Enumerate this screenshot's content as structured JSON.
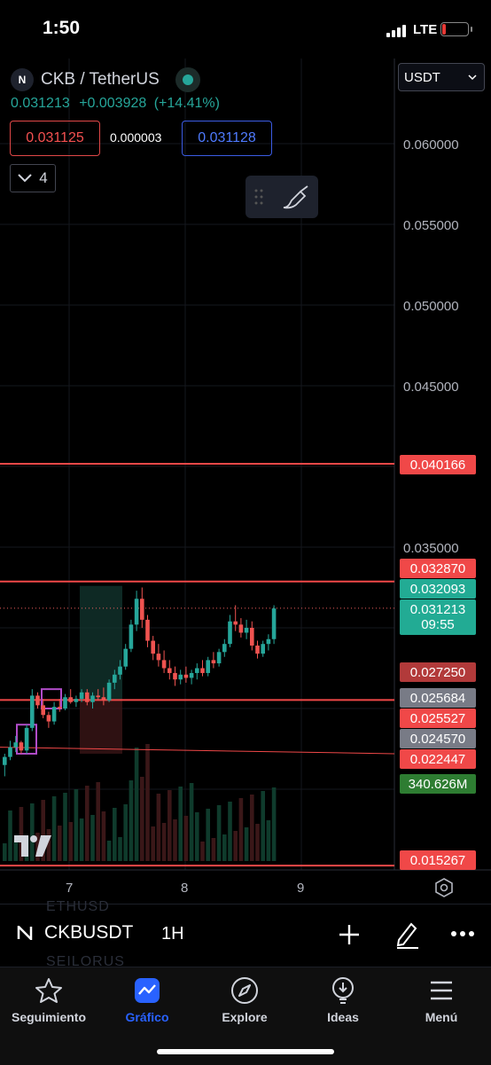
{
  "status_bar": {
    "time": "1:50",
    "network": "LTE"
  },
  "header": {
    "symbol_title": "CKB / TetherUS",
    "last_price": "0.031213",
    "change": "+0.003928",
    "change_pct": "(+14.41%)",
    "bid": "0.031125",
    "spread": "0.000003",
    "ask": "0.031128",
    "indicators_count": "4",
    "currency": "USDT"
  },
  "price_axis": {
    "labels": [
      "0.060000",
      "0.055000",
      "0.050000",
      "0.045000",
      "0.035000"
    ],
    "badges": [
      {
        "value": "0.040166",
        "color": "#f04848"
      },
      {
        "value": "0.032870",
        "color": "#f04848"
      },
      {
        "value": "0.032093",
        "color": "#22ab94"
      },
      {
        "value": "0.031213",
        "color": "#22ab94"
      },
      {
        "value": "09:55",
        "color": "#22ab94"
      },
      {
        "value": "0.027250",
        "color": "#f23645"
      },
      {
        "value": "0.025684",
        "color": "#787b86"
      },
      {
        "value": "0.025527",
        "color": "#f23645"
      },
      {
        "value": "0.024570",
        "color": "#787b86"
      },
      {
        "value": "0.022447",
        "color": "#f23645"
      },
      {
        "value": "340.626M",
        "color": "#2e7d32"
      },
      {
        "value": "0.015267",
        "color": "#f23645"
      }
    ]
  },
  "time_axis": {
    "labels": [
      "7",
      "8",
      "9"
    ]
  },
  "chart_data": {
    "type": "candlestick",
    "symbol": "CKBUSDT",
    "interval": "1H",
    "price_axis_ticks": [
      0.06,
      0.055,
      0.05,
      0.045,
      0.035
    ],
    "time_axis_ticks": [
      "7",
      "8",
      "9"
    ],
    "ylim": [
      0.015,
      0.0625
    ],
    "horizontal_levels": [
      0.040166,
      0.03287,
      0.025527,
      0.015267
    ],
    "trendline": {
      "from": 0.0226,
      "to": 0.0222
    },
    "last_price": 0.031213,
    "volume_last": "340.626M",
    "candles": [
      {
        "o": 0.0215,
        "h": 0.0222,
        "l": 0.0208,
        "c": 0.022
      },
      {
        "o": 0.022,
        "h": 0.023,
        "l": 0.0218,
        "c": 0.0226
      },
      {
        "o": 0.0226,
        "h": 0.0233,
        "l": 0.0223,
        "c": 0.0229
      },
      {
        "o": 0.0229,
        "h": 0.023,
        "l": 0.0222,
        "c": 0.0224
      },
      {
        "o": 0.0224,
        "h": 0.024,
        "l": 0.0222,
        "c": 0.0238
      },
      {
        "o": 0.0238,
        "h": 0.0262,
        "l": 0.0236,
        "c": 0.0258
      },
      {
        "o": 0.0258,
        "h": 0.026,
        "l": 0.025,
        "c": 0.0252
      },
      {
        "o": 0.0252,
        "h": 0.0256,
        "l": 0.0244,
        "c": 0.0246
      },
      {
        "o": 0.0246,
        "h": 0.0248,
        "l": 0.0238,
        "c": 0.0242
      },
      {
        "o": 0.0242,
        "h": 0.0254,
        "l": 0.024,
        "c": 0.0251
      },
      {
        "o": 0.0251,
        "h": 0.0256,
        "l": 0.0248,
        "c": 0.025
      },
      {
        "o": 0.025,
        "h": 0.0259,
        "l": 0.0249,
        "c": 0.0257
      },
      {
        "o": 0.0257,
        "h": 0.0262,
        "l": 0.0253,
        "c": 0.0254
      },
      {
        "o": 0.0254,
        "h": 0.0258,
        "l": 0.0251,
        "c": 0.0256
      },
      {
        "o": 0.0256,
        "h": 0.0262,
        "l": 0.0254,
        "c": 0.026
      },
      {
        "o": 0.026,
        "h": 0.0262,
        "l": 0.0252,
        "c": 0.0254
      },
      {
        "o": 0.0254,
        "h": 0.026,
        "l": 0.025,
        "c": 0.0258
      },
      {
        "o": 0.0258,
        "h": 0.0262,
        "l": 0.0255,
        "c": 0.0257
      },
      {
        "o": 0.0257,
        "h": 0.0263,
        "l": 0.0252,
        "c": 0.0255
      },
      {
        "o": 0.0255,
        "h": 0.0268,
        "l": 0.0254,
        "c": 0.0266
      },
      {
        "o": 0.0266,
        "h": 0.0274,
        "l": 0.0262,
        "c": 0.0271
      },
      {
        "o": 0.0271,
        "h": 0.028,
        "l": 0.0268,
        "c": 0.0276
      },
      {
        "o": 0.0276,
        "h": 0.029,
        "l": 0.0274,
        "c": 0.0287
      },
      {
        "o": 0.0287,
        "h": 0.0305,
        "l": 0.0285,
        "c": 0.0302
      },
      {
        "o": 0.0302,
        "h": 0.0323,
        "l": 0.0298,
        "c": 0.0318
      },
      {
        "o": 0.0318,
        "h": 0.0325,
        "l": 0.03,
        "c": 0.0305
      },
      {
        "o": 0.0305,
        "h": 0.0308,
        "l": 0.0288,
        "c": 0.0292
      },
      {
        "o": 0.0292,
        "h": 0.0295,
        "l": 0.028,
        "c": 0.0284
      },
      {
        "o": 0.0284,
        "h": 0.029,
        "l": 0.0276,
        "c": 0.028
      },
      {
        "o": 0.028,
        "h": 0.0286,
        "l": 0.0272,
        "c": 0.0275
      },
      {
        "o": 0.0275,
        "h": 0.028,
        "l": 0.0268,
        "c": 0.0272
      },
      {
        "o": 0.0272,
        "h": 0.0276,
        "l": 0.0264,
        "c": 0.0268
      },
      {
        "o": 0.0268,
        "h": 0.0274,
        "l": 0.0265,
        "c": 0.0271
      },
      {
        "o": 0.0271,
        "h": 0.0276,
        "l": 0.0266,
        "c": 0.0269
      },
      {
        "o": 0.0269,
        "h": 0.0274,
        "l": 0.0265,
        "c": 0.0272
      },
      {
        "o": 0.0272,
        "h": 0.0278,
        "l": 0.0268,
        "c": 0.0275
      },
      {
        "o": 0.0275,
        "h": 0.028,
        "l": 0.027,
        "c": 0.0272
      },
      {
        "o": 0.0272,
        "h": 0.0282,
        "l": 0.027,
        "c": 0.028
      },
      {
        "o": 0.028,
        "h": 0.0285,
        "l": 0.0275,
        "c": 0.0278
      },
      {
        "o": 0.0278,
        "h": 0.0287,
        "l": 0.0276,
        "c": 0.0285
      },
      {
        "o": 0.0285,
        "h": 0.0293,
        "l": 0.0282,
        "c": 0.029
      },
      {
        "o": 0.029,
        "h": 0.0308,
        "l": 0.0288,
        "c": 0.0304
      },
      {
        "o": 0.0304,
        "h": 0.0314,
        "l": 0.0298,
        "c": 0.0302
      },
      {
        "o": 0.0302,
        "h": 0.0306,
        "l": 0.0294,
        "c": 0.0297
      },
      {
        "o": 0.0297,
        "h": 0.0305,
        "l": 0.0293,
        "c": 0.03
      },
      {
        "o": 0.03,
        "h": 0.0304,
        "l": 0.0286,
        "c": 0.0289
      },
      {
        "o": 0.0289,
        "h": 0.0292,
        "l": 0.0281,
        "c": 0.0284
      },
      {
        "o": 0.0284,
        "h": 0.0292,
        "l": 0.0282,
        "c": 0.029
      },
      {
        "o": 0.029,
        "h": 0.0296,
        "l": 0.0286,
        "c": 0.0293
      },
      {
        "o": 0.0293,
        "h": 0.0314,
        "l": 0.029,
        "c": 0.0312
      }
    ]
  },
  "toolbar": {
    "symbol": "CKBUSDT",
    "interval": "1H",
    "ghost_top": "ETHUSD",
    "ghost_bottom": "SEILORUS"
  },
  "nav": [
    {
      "label": "Seguimiento",
      "icon": "star-icon"
    },
    {
      "label": "Gráfico",
      "icon": "chart-icon"
    },
    {
      "label": "Explore",
      "icon": "compass-icon"
    },
    {
      "label": "Ideas",
      "icon": "lightbulb-icon"
    },
    {
      "label": "Menú",
      "icon": "hamburger-icon"
    }
  ]
}
